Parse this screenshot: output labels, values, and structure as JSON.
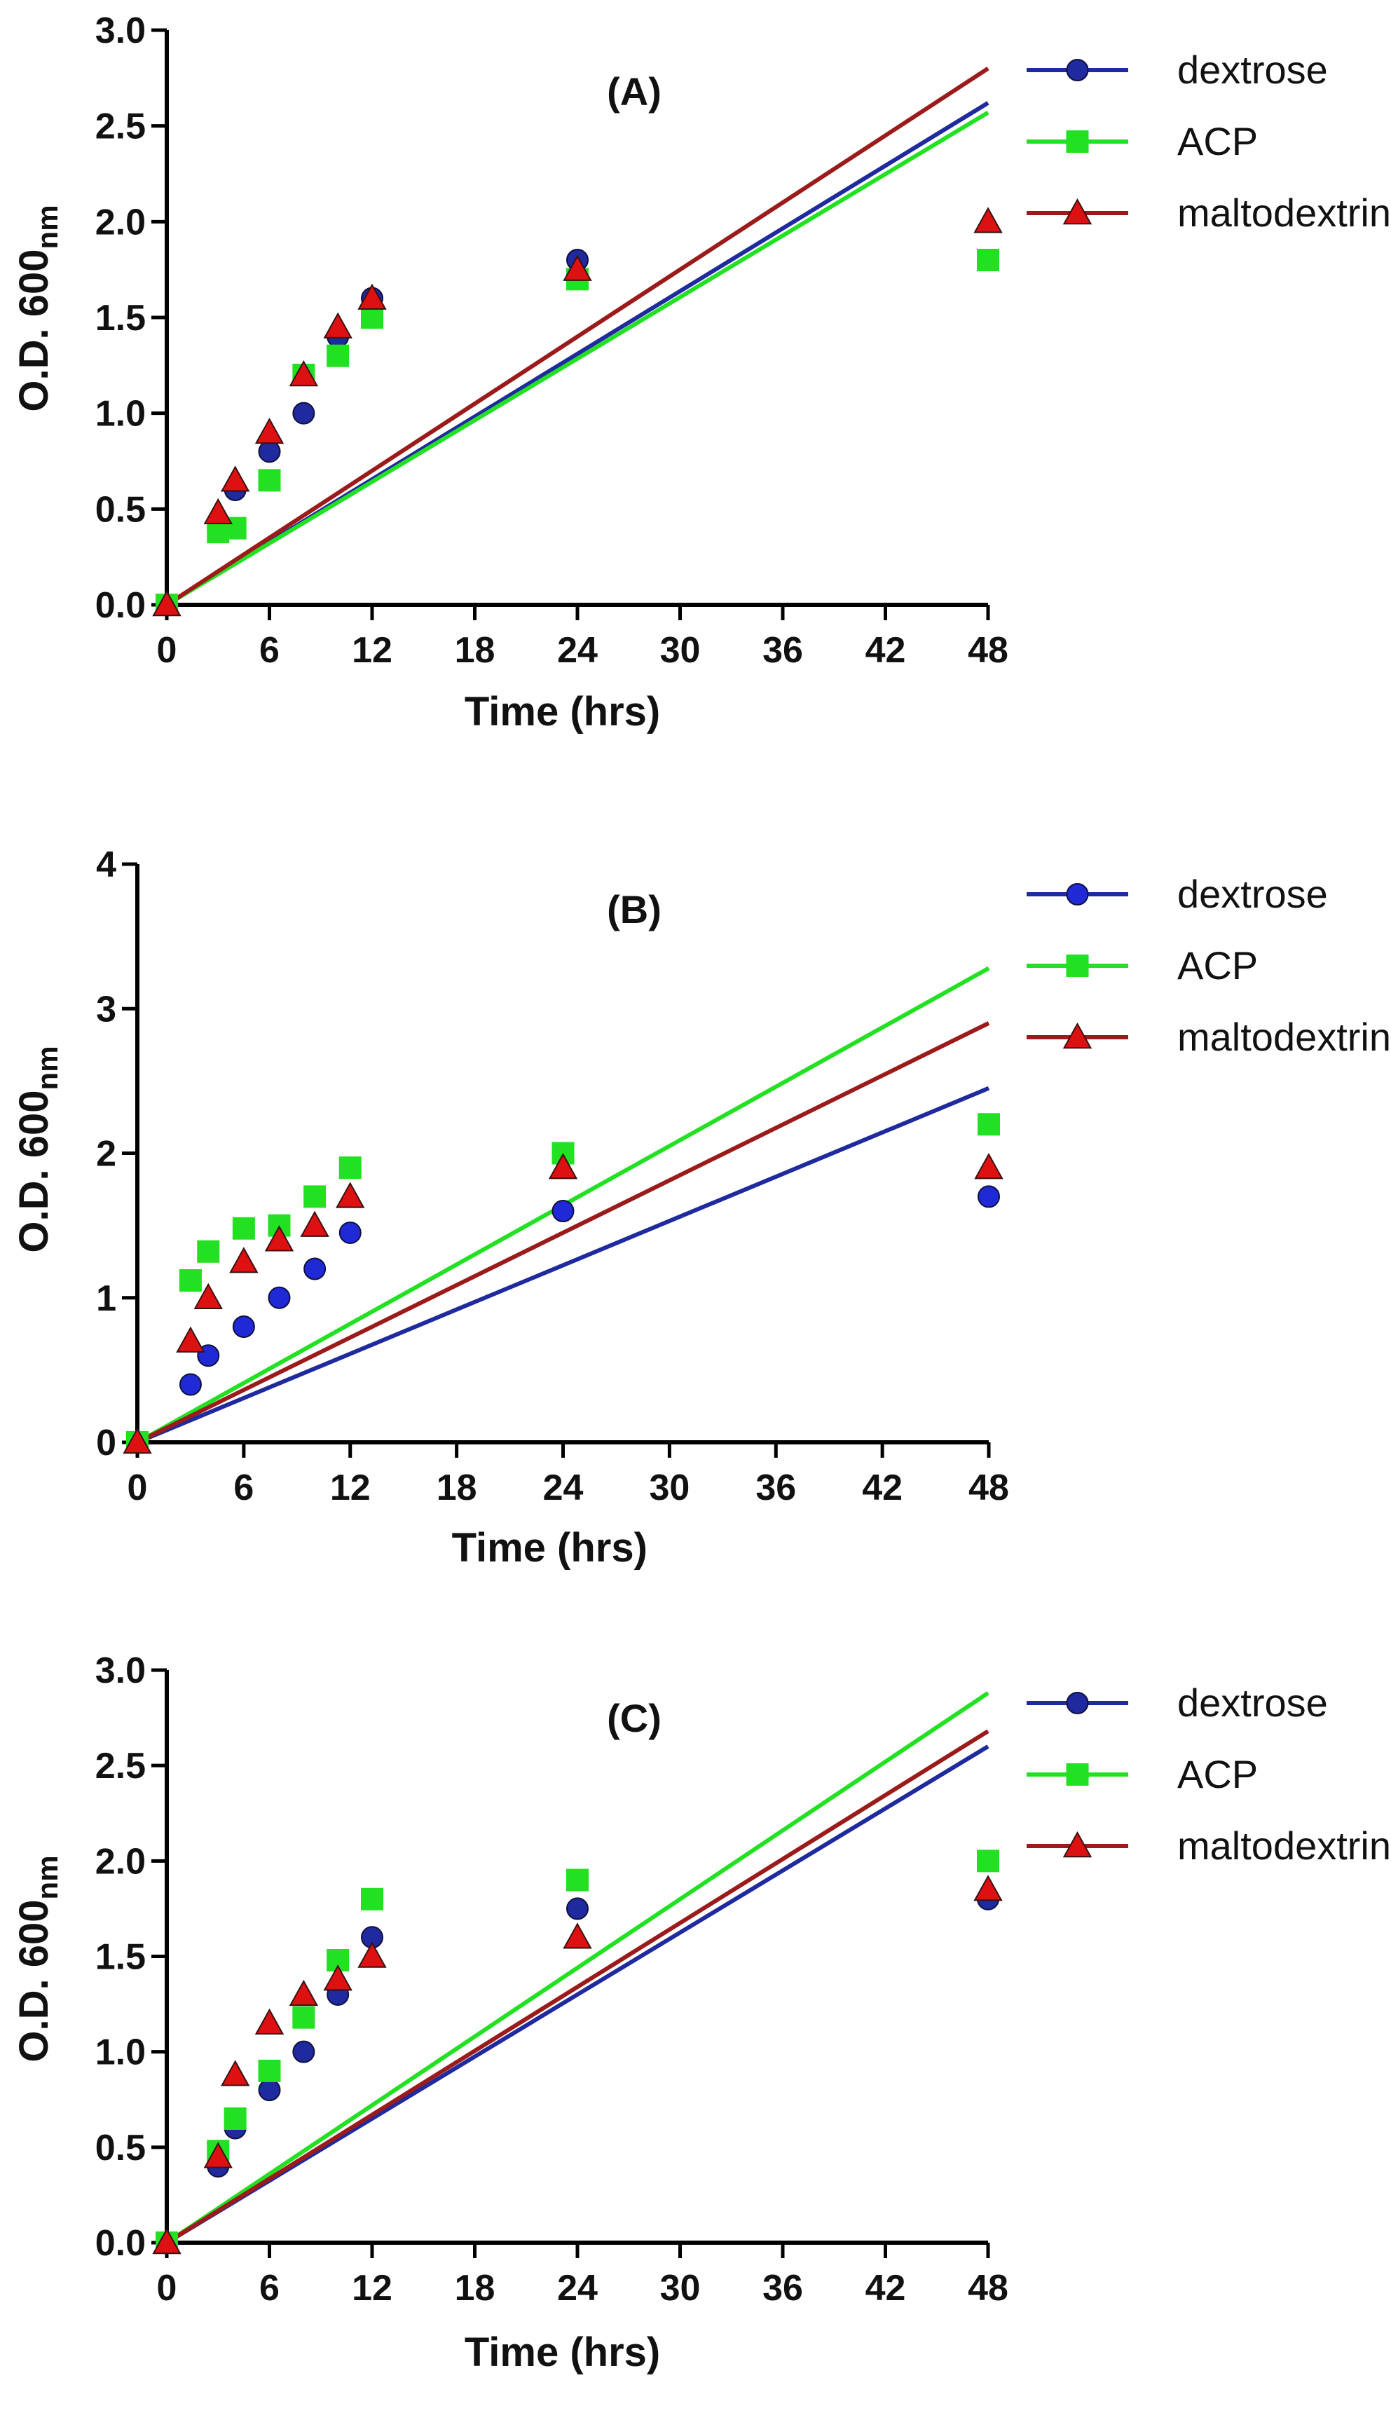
{
  "chart_data": [
    {
      "type": "scatter",
      "title": "(A)",
      "xlabel": "Time (hrs)",
      "ylabel": {
        "main": "O.D. 600",
        "sub": "nm"
      },
      "xlim": [
        0,
        48
      ],
      "ylim": [
        0,
        3.0
      ],
      "xticks": [
        0,
        6,
        12,
        18,
        24,
        30,
        36,
        42,
        48
      ],
      "yticks": [
        0,
        0.5,
        1.0,
        1.5,
        2.0,
        2.5,
        3.0
      ],
      "ytick_labels": [
        "0.0",
        "0.5",
        "1.0",
        "1.5",
        "2.0",
        "2.5",
        "3.0"
      ],
      "legend_position": "top-right",
      "grid": false,
      "series": [
        {
          "name": "dextrose",
          "marker": "circle",
          "color": "#1f2a9e",
          "line_color": "#1f2a9e",
          "x": [
            0,
            3,
            4,
            6,
            8,
            10,
            12,
            24,
            48
          ],
          "y": [
            0,
            0.4,
            0.6,
            0.8,
            1.0,
            1.4,
            1.6,
            1.8,
            1.8
          ],
          "fit_line": {
            "x": [
              0,
              48
            ],
            "y": [
              0,
              2.62
            ]
          }
        },
        {
          "name": "ACP",
          "marker": "square",
          "color": "#22e022",
          "line_color": "#22e022",
          "x": [
            0,
            3,
            4,
            6,
            8,
            10,
            12,
            24,
            48
          ],
          "y": [
            0,
            0.38,
            0.4,
            0.65,
            1.2,
            1.3,
            1.5,
            1.7,
            1.8
          ],
          "fit_line": {
            "x": [
              0,
              48
            ],
            "y": [
              0,
              2.57
            ]
          }
        },
        {
          "name": "maltodextrin",
          "marker": "triangle",
          "color": "#dd1111",
          "line_color": "#9b1b1b",
          "x": [
            0,
            3,
            4,
            6,
            8,
            10,
            12,
            24,
            48
          ],
          "y": [
            0,
            0.48,
            0.65,
            0.9,
            1.2,
            1.45,
            1.6,
            1.75,
            2.0
          ],
          "fit_line": {
            "x": [
              0,
              48
            ],
            "y": [
              0,
              2.8
            ]
          }
        }
      ]
    },
    {
      "type": "scatter",
      "title": "(B)",
      "xlabel": "Time (hrs)",
      "ylabel": {
        "main": "O.D. 600",
        "sub": "nm"
      },
      "xlim": [
        0,
        48
      ],
      "ylim": [
        0,
        4
      ],
      "xticks": [
        0,
        6,
        12,
        18,
        24,
        30,
        36,
        42,
        48
      ],
      "yticks": [
        0,
        1,
        2,
        3,
        4
      ],
      "ytick_labels": [
        "0",
        "1",
        "2",
        "3",
        "4"
      ],
      "legend_position": "top-right",
      "grid": false,
      "series": [
        {
          "name": "dextrose",
          "marker": "circle",
          "color": "#1f2ad6",
          "line_color": "#1f2a9e",
          "x": [
            0,
            3,
            4,
            6,
            8,
            10,
            12,
            24,
            48
          ],
          "y": [
            0,
            0.4,
            0.6,
            0.8,
            1.0,
            1.2,
            1.45,
            1.6,
            1.7
          ],
          "fit_line": {
            "x": [
              0,
              48
            ],
            "y": [
              0,
              2.45
            ]
          }
        },
        {
          "name": "ACP",
          "marker": "square",
          "color": "#22e022",
          "line_color": "#22e022",
          "x": [
            0,
            3,
            4,
            6,
            8,
            10,
            12,
            24,
            48
          ],
          "y": [
            0,
            1.12,
            1.32,
            1.48,
            1.5,
            1.7,
            1.9,
            2.0,
            2.2
          ],
          "fit_line": {
            "x": [
              0,
              48
            ],
            "y": [
              0,
              3.28
            ]
          }
        },
        {
          "name": "maltodextrin",
          "marker": "triangle",
          "color": "#dd1111",
          "line_color": "#9b1b1b",
          "x": [
            0,
            3,
            4,
            6,
            8,
            10,
            12,
            24,
            48
          ],
          "y": [
            0,
            0.7,
            1.0,
            1.25,
            1.4,
            1.5,
            1.7,
            1.9,
            1.9
          ],
          "fit_line": {
            "x": [
              0,
              48
            ],
            "y": [
              0,
              2.9
            ]
          }
        }
      ]
    },
    {
      "type": "scatter",
      "title": "(C)",
      "xlabel": "Time (hrs)",
      "ylabel": {
        "main": "O.D. 600",
        "sub": "nm"
      },
      "xlim": [
        0,
        48
      ],
      "ylim": [
        0,
        3.0
      ],
      "xticks": [
        0,
        6,
        12,
        18,
        24,
        30,
        36,
        42,
        48
      ],
      "yticks": [
        0,
        0.5,
        1.0,
        1.5,
        2.0,
        2.5,
        3.0
      ],
      "ytick_labels": [
        "0.0",
        "0.5",
        "1.0",
        "1.5",
        "2.0",
        "2.5",
        "3.0"
      ],
      "legend_position": "top-right",
      "grid": false,
      "series": [
        {
          "name": "dextrose",
          "marker": "circle",
          "color": "#1f2a9e",
          "line_color": "#1f2a9e",
          "x": [
            0,
            3,
            4,
            6,
            8,
            10,
            12,
            24,
            48
          ],
          "y": [
            0,
            0.4,
            0.6,
            0.8,
            1.0,
            1.3,
            1.6,
            1.75,
            1.8
          ],
          "fit_line": {
            "x": [
              0,
              48
            ],
            "y": [
              0,
              2.6
            ]
          }
        },
        {
          "name": "ACP",
          "marker": "square",
          "color": "#22e022",
          "line_color": "#22e022",
          "x": [
            0,
            3,
            4,
            6,
            8,
            10,
            12,
            24,
            48
          ],
          "y": [
            0,
            0.48,
            0.65,
            0.9,
            1.18,
            1.48,
            1.8,
            1.9,
            2.0
          ],
          "fit_line": {
            "x": [
              0,
              48
            ],
            "y": [
              0,
              2.88
            ]
          }
        },
        {
          "name": "maltodextrin",
          "marker": "triangle",
          "color": "#dd1111",
          "line_color": "#9b1b1b",
          "x": [
            0,
            3,
            4,
            6,
            8,
            10,
            12,
            24,
            48
          ],
          "y": [
            0,
            0.45,
            0.88,
            1.15,
            1.3,
            1.38,
            1.5,
            1.6,
            1.85
          ],
          "fit_line": {
            "x": [
              0,
              48
            ],
            "y": [
              0,
              2.68
            ]
          }
        }
      ]
    }
  ]
}
